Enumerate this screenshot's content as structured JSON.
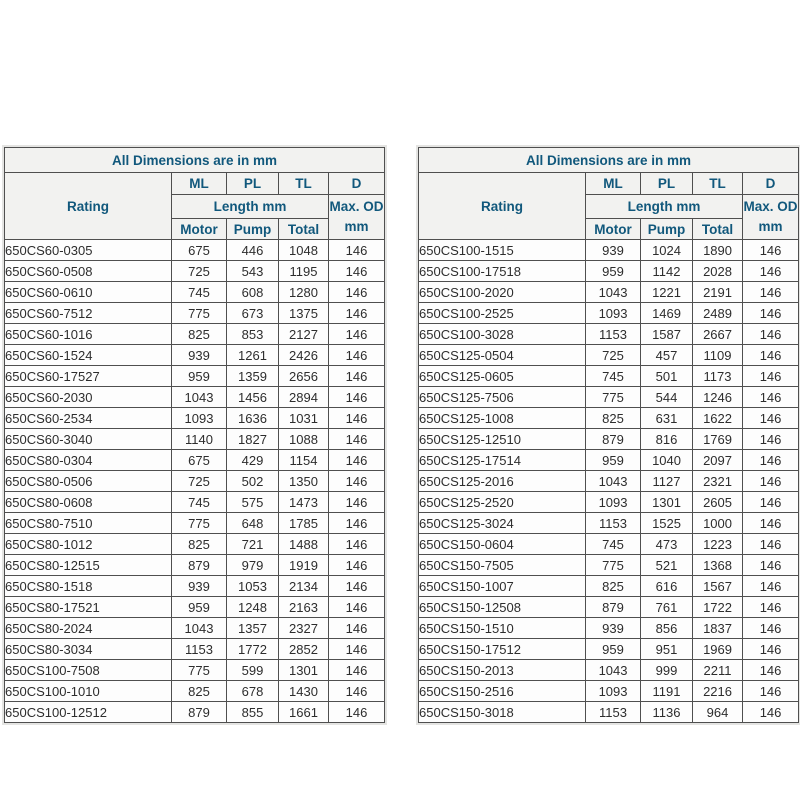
{
  "page": {
    "background": "#ffffff"
  },
  "colors": {
    "header_text": "#11587c",
    "data_text": "#2d2d2d",
    "border": "#4f4f4f",
    "header_bg": "#f2f2f0",
    "cell_bg": "#fdfdfd"
  },
  "labels": {
    "title": "All Dimensions are in mm",
    "rating": "Rating",
    "ml": "ML",
    "pl": "PL",
    "tl": "TL",
    "d": "D",
    "length": "Length mm",
    "max_od_line1": "Max. OD",
    "max_od_line2": "mm",
    "motor": "Motor",
    "pump": "Pump",
    "total": "Total"
  },
  "tables": [
    {
      "name": "left",
      "rows": [
        {
          "rating": "650CS60-0305",
          "motor": "675",
          "pump": "446",
          "total": "1048",
          "od": "146"
        },
        {
          "rating": "650CS60-0508",
          "motor": "725",
          "pump": "543",
          "total": "1195",
          "od": "146"
        },
        {
          "rating": "650CS60-0610",
          "motor": "745",
          "pump": "608",
          "total": "1280",
          "od": "146"
        },
        {
          "rating": "650CS60-7512",
          "motor": "775",
          "pump": "673",
          "total": "1375",
          "od": "146"
        },
        {
          "rating": "650CS60-1016",
          "motor": "825",
          "pump": "853",
          "total": "2127",
          "od": "146"
        },
        {
          "rating": "650CS60-1524",
          "motor": "939",
          "pump": "1261",
          "total": "2426",
          "od": "146"
        },
        {
          "rating": "650CS60-17527",
          "motor": "959",
          "pump": "1359",
          "total": "2656",
          "od": "146"
        },
        {
          "rating": "650CS60-2030",
          "motor": "1043",
          "pump": "1456",
          "total": "2894",
          "od": "146"
        },
        {
          "rating": "650CS60-2534",
          "motor": "1093",
          "pump": "1636",
          "total": "1031",
          "od": "146"
        },
        {
          "rating": "650CS60-3040",
          "motor": "1140",
          "pump": "1827",
          "total": "1088",
          "od": "146"
        },
        {
          "rating": "650CS80-0304",
          "motor": "675",
          "pump": "429",
          "total": "1154",
          "od": "146"
        },
        {
          "rating": "650CS80-0506",
          "motor": "725",
          "pump": "502",
          "total": "1350",
          "od": "146"
        },
        {
          "rating": "650CS80-0608",
          "motor": "745",
          "pump": "575",
          "total": "1473",
          "od": "146"
        },
        {
          "rating": "650CS80-7510",
          "motor": "775",
          "pump": "648",
          "total": "1785",
          "od": "146"
        },
        {
          "rating": "650CS80-1012",
          "motor": "825",
          "pump": "721",
          "total": "1488",
          "od": "146"
        },
        {
          "rating": "650CS80-12515",
          "motor": "879",
          "pump": "979",
          "total": "1919",
          "od": "146"
        },
        {
          "rating": "650CS80-1518",
          "motor": "939",
          "pump": "1053",
          "total": "2134",
          "od": "146"
        },
        {
          "rating": "650CS80-17521",
          "motor": "959",
          "pump": "1248",
          "total": "2163",
          "od": "146"
        },
        {
          "rating": "650CS80-2024",
          "motor": "1043",
          "pump": "1357",
          "total": "2327",
          "od": "146"
        },
        {
          "rating": "650CS80-3034",
          "motor": "1153",
          "pump": "1772",
          "total": "2852",
          "od": "146"
        },
        {
          "rating": "650CS100-7508",
          "motor": "775",
          "pump": "599",
          "total": "1301",
          "od": "146"
        },
        {
          "rating": "650CS100-1010",
          "motor": "825",
          "pump": "678",
          "total": "1430",
          "od": "146"
        },
        {
          "rating": "650CS100-12512",
          "motor": "879",
          "pump": "855",
          "total": "1661",
          "od": "146"
        }
      ]
    },
    {
      "name": "right",
      "rows": [
        {
          "rating": "650CS100-1515",
          "motor": "939",
          "pump": "1024",
          "total": "1890",
          "od": "146"
        },
        {
          "rating": "650CS100-17518",
          "motor": "959",
          "pump": "1142",
          "total": "2028",
          "od": "146"
        },
        {
          "rating": "650CS100-2020",
          "motor": "1043",
          "pump": "1221",
          "total": "2191",
          "od": "146"
        },
        {
          "rating": "650CS100-2525",
          "motor": "1093",
          "pump": "1469",
          "total": "2489",
          "od": "146"
        },
        {
          "rating": "650CS100-3028",
          "motor": "1153",
          "pump": "1587",
          "total": "2667",
          "od": "146"
        },
        {
          "rating": "650CS125-0504",
          "motor": "725",
          "pump": "457",
          "total": "1109",
          "od": "146"
        },
        {
          "rating": "650CS125-0605",
          "motor": "745",
          "pump": "501",
          "total": "1173",
          "od": "146"
        },
        {
          "rating": "650CS125-7506",
          "motor": "775",
          "pump": "544",
          "total": "1246",
          "od": "146"
        },
        {
          "rating": "650CS125-1008",
          "motor": "825",
          "pump": "631",
          "total": "1622",
          "od": "146"
        },
        {
          "rating": "650CS125-12510",
          "motor": "879",
          "pump": "816",
          "total": "1769",
          "od": "146"
        },
        {
          "rating": "650CS125-17514",
          "motor": "959",
          "pump": "1040",
          "total": "2097",
          "od": "146"
        },
        {
          "rating": "650CS125-2016",
          "motor": "1043",
          "pump": "1127",
          "total": "2321",
          "od": "146"
        },
        {
          "rating": "650CS125-2520",
          "motor": "1093",
          "pump": "1301",
          "total": "2605",
          "od": "146"
        },
        {
          "rating": "650CS125-3024",
          "motor": "1153",
          "pump": "1525",
          "total": "1000",
          "od": "146"
        },
        {
          "rating": "650CS150-0604",
          "motor": "745",
          "pump": "473",
          "total": "1223",
          "od": "146"
        },
        {
          "rating": "650CS150-7505",
          "motor": "775",
          "pump": "521",
          "total": "1368",
          "od": "146"
        },
        {
          "rating": "650CS150-1007",
          "motor": "825",
          "pump": "616",
          "total": "1567",
          "od": "146"
        },
        {
          "rating": "650CS150-12508",
          "motor": "879",
          "pump": "761",
          "total": "1722",
          "od": "146"
        },
        {
          "rating": "650CS150-1510",
          "motor": "939",
          "pump": "856",
          "total": "1837",
          "od": "146"
        },
        {
          "rating": "650CS150-17512",
          "motor": "959",
          "pump": "951",
          "total": "1969",
          "od": "146"
        },
        {
          "rating": "650CS150-2013",
          "motor": "1043",
          "pump": "999",
          "total": "2211",
          "od": "146"
        },
        {
          "rating": "650CS150-2516",
          "motor": "1093",
          "pump": "1191",
          "total": "2216",
          "od": "146"
        },
        {
          "rating": "650CS150-3018",
          "motor": "1153",
          "pump": "1136",
          "total": "964",
          "od": "146"
        }
      ]
    }
  ]
}
